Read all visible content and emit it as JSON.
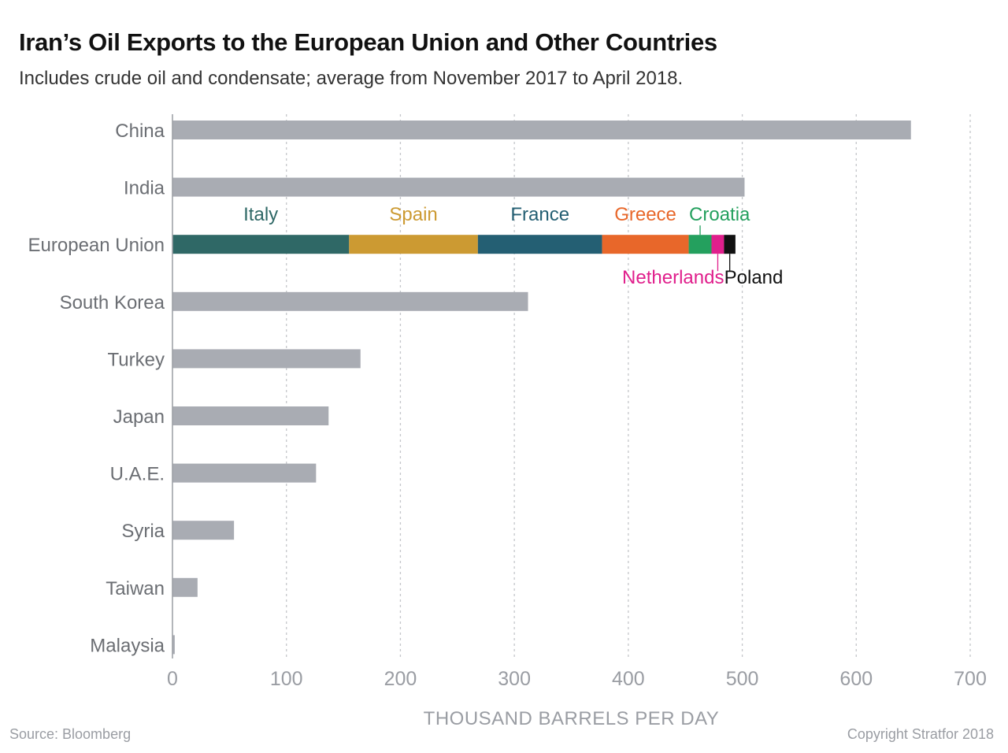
{
  "header": {
    "title": "Iran’s Oil Exports to the European Union and Other Countries",
    "subtitle": "Includes crude oil and condensate; average from November 2017 to April 2018."
  },
  "footer": {
    "source": "Source: Bloomberg",
    "copyright": "Copyright Stratfor 2018"
  },
  "chart_data": {
    "type": "bar",
    "orientation": "horizontal",
    "stacked_category": "European Union",
    "categories": [
      "China",
      "India",
      "European Union",
      "South Korea",
      "Turkey",
      "Japan",
      "U.A.E.",
      "Syria",
      "Taiwan",
      "Malaysia"
    ],
    "values": [
      648,
      502,
      494,
      312,
      165,
      137,
      126,
      54,
      22,
      2
    ],
    "segments": [
      {
        "name": "Italy",
        "value": 155,
        "color": "#2f6866",
        "text_color": "#2f6866"
      },
      {
        "name": "Spain",
        "value": 113,
        "color": "#cc9a32",
        "text_color": "#cc9a32"
      },
      {
        "name": "France",
        "value": 109,
        "color": "#245f73",
        "text_color": "#245f73"
      },
      {
        "name": "Greece",
        "value": 76,
        "color": "#e8672a",
        "text_color": "#e8672a"
      },
      {
        "name": "Croatia",
        "value": 20,
        "color": "#24a05e",
        "text_color": "#24a05e"
      },
      {
        "name": "Netherlands",
        "value": 11,
        "color": "#e01f8c",
        "text_color": "#e01f8c"
      },
      {
        "name": "Poland",
        "value": 10,
        "color": "#111111",
        "text_color": "#111111"
      }
    ],
    "bar_color": "#a9acb3",
    "xlabel": "THOUSAND BARRELS PER DAY",
    "ylabel": "",
    "xlim": [
      0,
      700
    ],
    "xticks": [
      0,
      100,
      200,
      300,
      400,
      500,
      600,
      700
    ],
    "grid": true
  }
}
